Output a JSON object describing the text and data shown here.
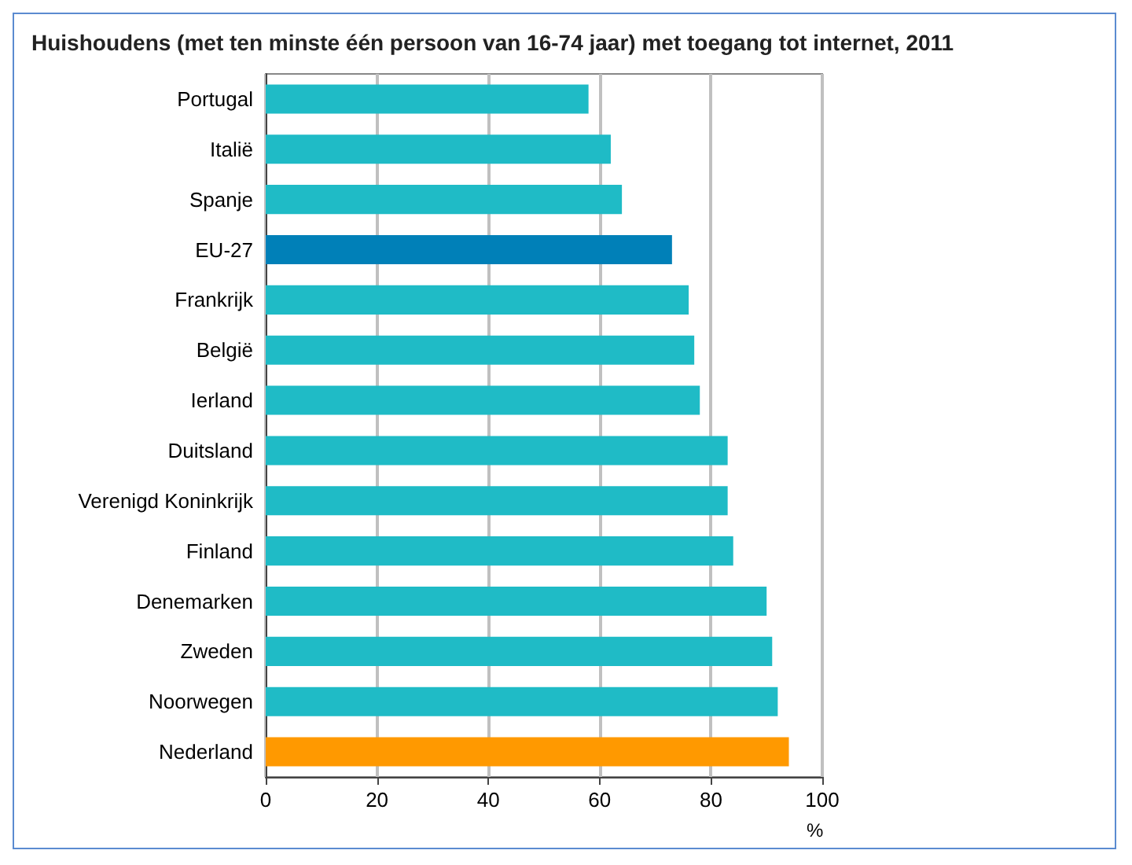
{
  "chart_data": {
    "type": "bar",
    "orientation": "horizontal",
    "title": "Huishoudens (met ten minste één persoon van 16-74 jaar) met toegang tot internet, 2011",
    "xlabel": "%",
    "categories": [
      "Portugal",
      "Italië",
      "Spanje",
      "EU-27",
      "Frankrijk",
      "België",
      "Ierland",
      "Duitsland",
      "Verenigd Koninkrijk",
      "Finland",
      "Denemarken",
      "Zweden",
      "Noorwegen",
      "Nederland"
    ],
    "values": [
      58,
      62,
      64,
      73,
      76,
      77,
      78,
      83,
      83,
      84,
      90,
      91,
      92,
      94
    ],
    "colors": [
      "#1fbbc6",
      "#1fbbc6",
      "#1fbbc6",
      "#0080b8",
      "#1fbbc6",
      "#1fbbc6",
      "#1fbbc6",
      "#1fbbc6",
      "#1fbbc6",
      "#1fbbc6",
      "#1fbbc6",
      "#1fbbc6",
      "#1fbbc6",
      "#ff9900"
    ],
    "xlim": [
      0,
      100
    ],
    "xticks": [
      0,
      20,
      40,
      60,
      80,
      100
    ],
    "grid": "x"
  }
}
